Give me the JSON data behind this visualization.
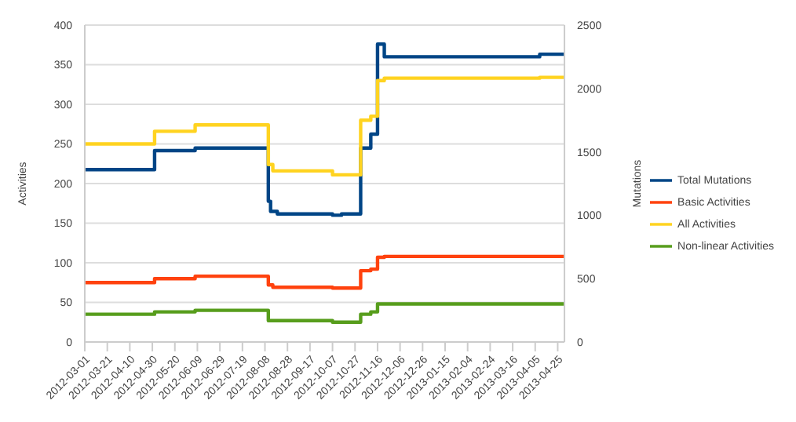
{
  "chart_data": {
    "type": "step",
    "ylabel": "Activities",
    "y2label": "Mutations",
    "xlim": [
      "2012-03-01",
      "2013-05-01"
    ],
    "xticks": [
      "2012-03-01",
      "2012-03-21",
      "2012-04-10",
      "2012-04-30",
      "2012-05-20",
      "2012-06-09",
      "2012-06-29",
      "2012-07-19",
      "2012-08-08",
      "2012-08-28",
      "2012-09-17",
      "2012-10-07",
      "2012-10-27",
      "2012-11-16",
      "2012-12-06",
      "2012-12-26",
      "2013-01-15",
      "2013-02-04",
      "2013-02-24",
      "2013-03-16",
      "2013-04-05",
      "2013-04-25"
    ],
    "ylim": [
      0,
      400
    ],
    "yticks": [
      0,
      50,
      100,
      150,
      200,
      250,
      300,
      350,
      400
    ],
    "y2lim": [
      0,
      2500
    ],
    "y2ticks": [
      0,
      500,
      1000,
      1500,
      2000,
      2500
    ],
    "grid": "y",
    "legend": "right",
    "series": [
      {
        "name": "Total Mutations",
        "color": "#004586",
        "axis": "y2",
        "x": [
          "2012-03-01",
          "2012-05-02",
          "2012-06-07",
          "2012-08-11",
          "2012-08-13",
          "2012-08-19",
          "2012-10-07",
          "2012-10-15",
          "2012-11-01",
          "2012-11-10",
          "2012-11-16",
          "2012-11-22",
          "2013-04-09",
          "2013-05-01"
        ],
        "values": [
          1360,
          1510,
          1530,
          1110,
          1030,
          1010,
          1000,
          1010,
          1530,
          1640,
          2350,
          2250,
          2270,
          2270
        ]
      },
      {
        "name": "Basic Activities",
        "color": "#ff420e",
        "x": [
          "2012-03-01",
          "2012-05-02",
          "2012-06-07",
          "2012-08-11",
          "2012-08-15",
          "2012-10-07",
          "2012-11-01",
          "2012-11-10",
          "2012-11-16",
          "2012-11-22",
          "2013-05-01"
        ],
        "values": [
          75,
          80,
          83,
          72,
          69,
          68,
          90,
          92,
          107,
          108,
          108
        ]
      },
      {
        "name": "All Activities",
        "color": "#ffd320",
        "x": [
          "2012-03-01",
          "2012-05-02",
          "2012-06-07",
          "2012-08-11",
          "2012-08-15",
          "2012-10-07",
          "2012-11-01",
          "2012-11-10",
          "2012-11-16",
          "2012-11-22",
          "2013-04-09",
          "2013-05-01"
        ],
        "values": [
          250,
          266,
          274,
          224,
          216,
          211,
          280,
          285,
          330,
          333,
          334,
          334
        ]
      },
      {
        "name": "Non-linear Activities",
        "color": "#579d1c",
        "x": [
          "2012-03-01",
          "2012-05-02",
          "2012-06-07",
          "2012-08-11",
          "2012-10-07",
          "2012-11-01",
          "2012-11-10",
          "2012-11-16",
          "2013-05-01"
        ],
        "values": [
          35,
          38,
          40,
          27,
          25,
          35,
          38,
          48,
          48
        ]
      }
    ]
  }
}
